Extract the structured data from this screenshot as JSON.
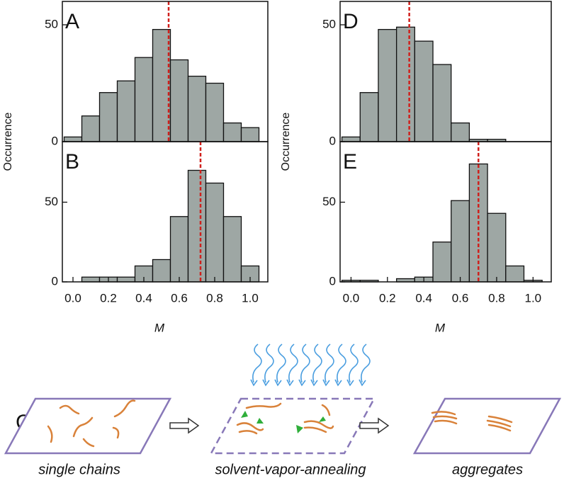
{
  "chart_data": [
    {
      "type": "histogram",
      "panel_label": "A",
      "ylabel": "Occurrence",
      "bins": [
        -0.05,
        0.05,
        0.15,
        0.25,
        0.35,
        0.45,
        0.55,
        0.65,
        0.75,
        0.85,
        0.95,
        1.05
      ],
      "values": [
        2,
        11,
        21,
        26,
        36,
        48,
        35,
        28,
        25,
        8,
        6
      ],
      "color": "#9ea7a4",
      "vline": 0.54,
      "vline_color": "#d0201c",
      "xlim": [
        -0.06,
        1.1
      ],
      "ylim": [
        0,
        60
      ],
      "yticks": [
        0,
        50
      ]
    },
    {
      "type": "histogram",
      "panel_label": "B",
      "xlabel": "M",
      "bins": [
        -0.05,
        0.05,
        0.15,
        0.25,
        0.35,
        0.45,
        0.55,
        0.65,
        0.75,
        0.85,
        0.95,
        1.05
      ],
      "values": [
        0,
        3,
        3,
        3,
        10,
        14,
        41,
        70,
        62,
        41,
        10
      ],
      "color": "#9ea7a4",
      "vline": 0.72,
      "vline_color": "#d0201c",
      "xlim": [
        -0.06,
        1.1
      ],
      "ylim": [
        0,
        88
      ],
      "yticks": [
        0,
        50
      ],
      "xticks": [
        {
          "value": 0,
          "label": "0.0"
        },
        {
          "value": 0.2,
          "label": "0.2"
        },
        {
          "value": 0.4,
          "label": "0.4"
        },
        {
          "value": 0.6,
          "label": "0.6"
        },
        {
          "value": 0.8,
          "label": "0.8"
        },
        {
          "value": 1,
          "label": "1.0"
        }
      ]
    },
    {
      "type": "histogram",
      "panel_label": "D",
      "ylabel": "Occurrence",
      "bins": [
        -0.05,
        0.05,
        0.15,
        0.25,
        0.35,
        0.45,
        0.55,
        0.65,
        0.75,
        0.85,
        0.95,
        1.05
      ],
      "values": [
        2,
        21,
        48,
        49,
        43,
        33,
        8,
        1,
        1,
        0,
        0
      ],
      "color": "#9ea7a4",
      "vline": 0.32,
      "vline_color": "#d0201c",
      "xlim": [
        -0.06,
        1.1
      ],
      "ylim": [
        0,
        60
      ],
      "yticks": [
        0,
        50
      ]
    },
    {
      "type": "histogram",
      "panel_label": "E",
      "xlabel": "M",
      "bins": [
        -0.05,
        0.05,
        0.15,
        0.25,
        0.35,
        0.45,
        0.55,
        0.65,
        0.75,
        0.85,
        0.95,
        1.05
      ],
      "values": [
        1,
        1,
        0,
        2,
        3,
        25,
        51,
        74,
        43,
        10,
        1
      ],
      "color": "#9ea7a4",
      "vline": 0.7,
      "vline_color": "#d0201c",
      "xlim": [
        -0.06,
        1.1
      ],
      "ylim": [
        0,
        88
      ],
      "yticks": [
        0,
        50
      ],
      "xticks": [
        {
          "value": 0,
          "label": "0.0"
        },
        {
          "value": 0.2,
          "label": "0.2"
        },
        {
          "value": 0.4,
          "label": "0.4"
        },
        {
          "value": 0.6,
          "label": "0.6"
        },
        {
          "value": 0.8,
          "label": "0.8"
        },
        {
          "value": 1,
          "label": "1.0"
        }
      ]
    }
  ],
  "diagram": {
    "label": "C",
    "captions": [
      "single chains",
      "solvent-vapor-annealing",
      "aggregates"
    ]
  }
}
